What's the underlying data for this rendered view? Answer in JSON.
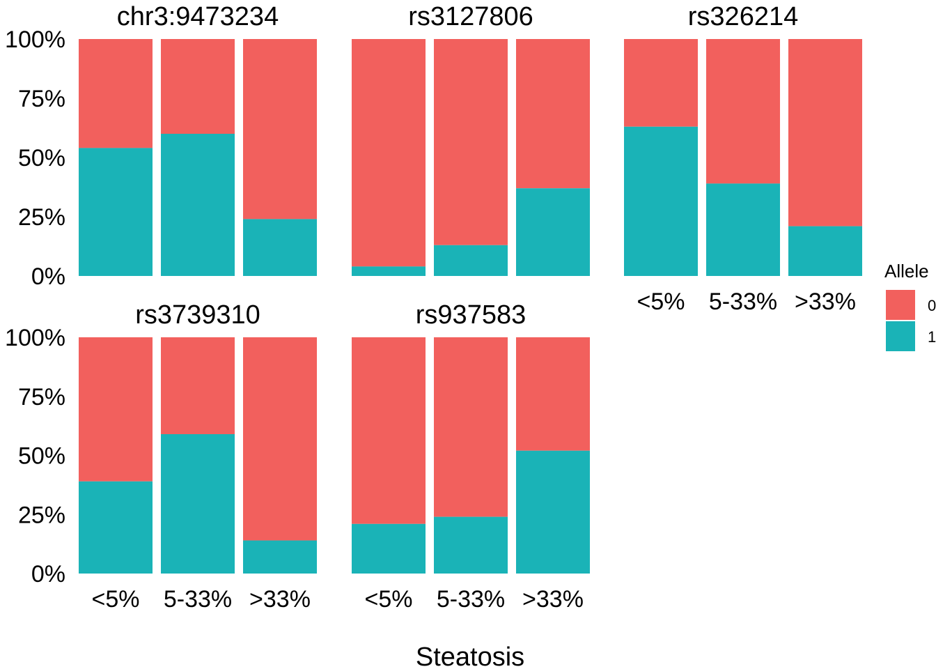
{
  "chart_data": {
    "type": "bar",
    "stacked": "proportional",
    "xlabel": "Steatosis",
    "ylabel": "",
    "ylim": [
      0,
      1
    ],
    "y_ticks": [
      "0%",
      "25%",
      "50%",
      "75%",
      "100%"
    ],
    "categories": [
      "<5%",
      "5-33%",
      ">33%"
    ],
    "grid": false,
    "legend": {
      "title": "Allele",
      "position": "right",
      "entries": [
        {
          "label": "0",
          "color": "#F2605D"
        },
        {
          "label": "1",
          "color": "#1AB3B7"
        }
      ]
    },
    "panels": [
      {
        "title": "chr3:9473234",
        "allele1_fraction": [
          0.54,
          0.6,
          0.24
        ]
      },
      {
        "title": "rs3127806",
        "allele1_fraction": [
          0.04,
          0.13,
          0.37
        ]
      },
      {
        "title": "rs326214",
        "allele1_fraction": [
          0.63,
          0.39,
          0.21
        ]
      },
      {
        "title": "rs3739310",
        "allele1_fraction": [
          0.39,
          0.59,
          0.14
        ]
      },
      {
        "title": "rs937583",
        "allele1_fraction": [
          0.21,
          0.24,
          0.52
        ]
      }
    ]
  }
}
